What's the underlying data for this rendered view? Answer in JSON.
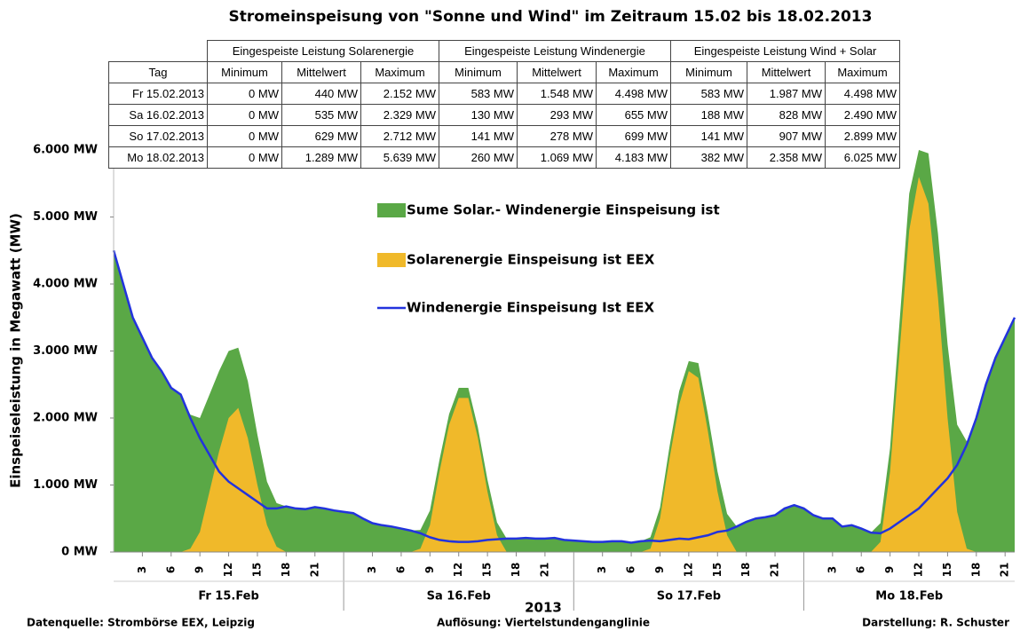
{
  "chart_data": {
    "type": "area",
    "title": "Stromeinspeisung von \"Sonne und Wind\" im Zeitraum 15.02 bis 18.02.2013",
    "ylabel": "Einspeiseleistung in Megawatt (MW)",
    "xlabel": "2013",
    "notes": [
      "Datenquelle: Strombörse EEX, Leipzig",
      "Auflösung: Viertelstundenganglinie",
      "Darstellung: R. Schuster"
    ],
    "categories": [
      "Fr 15.Feb",
      "Sa 16.Feb",
      "So 17.Feb",
      "Mo 18.Feb"
    ],
    "day_ticks": [
      24,
      48,
      72
    ],
    "xlim": [
      0,
      94
    ],
    "ylim": [
      0,
      6000
    ],
    "yticks": [
      {
        "value": 0,
        "label": "0 MW"
      },
      {
        "value": 1000,
        "label": "1.000 MW"
      },
      {
        "value": 2000,
        "label": "2.000 MW"
      },
      {
        "value": 3000,
        "label": "3.000 MW"
      },
      {
        "value": 4000,
        "label": "4.000 MW"
      },
      {
        "value": 5000,
        "label": "5.000 MW"
      },
      {
        "value": 6000,
        "label": "6.000 MW"
      }
    ],
    "xticks": [
      3,
      6,
      9,
      12,
      15,
      18,
      21,
      {
        "value": 27,
        "label": "3"
      },
      {
        "value": 30,
        "label": "6"
      },
      {
        "value": 33,
        "label": "9"
      },
      {
        "value": 36,
        "label": "12"
      },
      {
        "value": 39,
        "label": "15"
      },
      {
        "value": 42,
        "label": "18"
      },
      {
        "value": 45,
        "label": "21"
      },
      {
        "value": 51,
        "label": "3"
      },
      {
        "value": 54,
        "label": "6"
      },
      {
        "value": 57,
        "label": "9"
      },
      {
        "value": 60,
        "label": "12"
      },
      {
        "value": 63,
        "label": "15"
      },
      {
        "value": 66,
        "label": "18"
      },
      {
        "value": 69,
        "label": "21"
      },
      {
        "value": 75,
        "label": "3"
      },
      {
        "value": 78,
        "label": "6"
      },
      {
        "value": 81,
        "label": "9"
      },
      {
        "value": 84,
        "label": "12"
      },
      {
        "value": 87,
        "label": "15"
      },
      {
        "value": 90,
        "label": "18"
      },
      {
        "value": 93,
        "label": "21"
      }
    ],
    "x": [
      0,
      1,
      2,
      3,
      4,
      5,
      6,
      7,
      8,
      9,
      10,
      11,
      12,
      13,
      14,
      15,
      16,
      17,
      18,
      19,
      20,
      21,
      22,
      23,
      24,
      25,
      26,
      27,
      28,
      29,
      30,
      31,
      32,
      33,
      34,
      35,
      36,
      37,
      38,
      39,
      40,
      41,
      42,
      43,
      44,
      45,
      46,
      47,
      48,
      49,
      50,
      51,
      52,
      53,
      54,
      55,
      56,
      57,
      58,
      59,
      60,
      61,
      62,
      63,
      64,
      65,
      66,
      67,
      68,
      69,
      70,
      71,
      72,
      73,
      74,
      75,
      76,
      77,
      78,
      79,
      80,
      81,
      82,
      83,
      84,
      85,
      86,
      87,
      88,
      89,
      90,
      91,
      92,
      93,
      94
    ],
    "series": [
      {
        "name": "Sume Solar.- Windenergie Einspeisung ist",
        "kind": "area",
        "color": "#5aa846",
        "values": [
          4500,
          4000,
          3500,
          3200,
          2900,
          2700,
          2450,
          2350,
          2050,
          2000,
          2350,
          2700,
          3000,
          3050,
          2550,
          1750,
          1050,
          730,
          680,
          650,
          640,
          670,
          650,
          620,
          600,
          580,
          500,
          430,
          400,
          380,
          350,
          320,
          330,
          620,
          1380,
          2060,
          2450,
          2450,
          1860,
          1080,
          440,
          200,
          200,
          210,
          200,
          200,
          210,
          180,
          170,
          160,
          150,
          150,
          160,
          160,
          140,
          160,
          220,
          660,
          1580,
          2400,
          2850,
          2820,
          2050,
          1200,
          570,
          380,
          450,
          500,
          520,
          550,
          650,
          700,
          650,
          550,
          500,
          500,
          380,
          400,
          350,
          290,
          430,
          1550,
          3450,
          5350,
          6000,
          5950,
          4750,
          3100,
          1900,
          1650,
          2000,
          2500,
          2900,
          3200,
          3500
        ]
      },
      {
        "name": "Solarenergie Einspeisung ist EEX",
        "kind": "area",
        "color": "#f0b92a",
        "values": [
          0,
          0,
          0,
          0,
          0,
          0,
          0,
          0,
          50,
          300,
          900,
          1500,
          2000,
          2150,
          1700,
          1000,
          400,
          80,
          0,
          0,
          0,
          0,
          0,
          0,
          0,
          0,
          0,
          0,
          0,
          0,
          0,
          0,
          50,
          400,
          1200,
          1900,
          2300,
          2300,
          1700,
          900,
          250,
          0,
          0,
          0,
          0,
          0,
          0,
          0,
          0,
          0,
          0,
          0,
          0,
          0,
          0,
          0,
          50,
          500,
          1400,
          2200,
          2700,
          2600,
          1800,
          900,
          250,
          0,
          0,
          0,
          0,
          0,
          0,
          0,
          0,
          0,
          0,
          0,
          0,
          0,
          0,
          0,
          150,
          1200,
          3000,
          4800,
          5600,
          5200,
          3800,
          2000,
          600,
          50,
          0,
          0,
          0,
          0,
          0
        ]
      },
      {
        "name": "Windenergie Einspeisung Ist EEX",
        "kind": "line",
        "color": "#2233dd",
        "values": [
          4500,
          4000,
          3500,
          3200,
          2900,
          2700,
          2450,
          2350,
          2000,
          1700,
          1450,
          1200,
          1050,
          950,
          850,
          750,
          650,
          650,
          680,
          650,
          640,
          670,
          650,
          620,
          600,
          580,
          500,
          430,
          400,
          380,
          350,
          320,
          280,
          220,
          180,
          160,
          150,
          150,
          160,
          180,
          190,
          200,
          200,
          210,
          200,
          200,
          210,
          180,
          170,
          160,
          150,
          150,
          160,
          160,
          140,
          160,
          170,
          160,
          180,
          200,
          190,
          220,
          250,
          300,
          320,
          380,
          450,
          500,
          520,
          550,
          650,
          700,
          650,
          550,
          500,
          500,
          380,
          400,
          350,
          290,
          280,
          350,
          450,
          550,
          650,
          800,
          950,
          1100,
          1300,
          1600,
          2000,
          2500,
          2900,
          3200,
          3500
        ]
      }
    ]
  },
  "table": {
    "groups": [
      "Eingespeiste Leistung Solarenergie",
      "Eingespeiste Leistung Windenergie",
      "Eingespeiste Leistung Wind  + Solar"
    ],
    "columns": [
      "Tag",
      "Minimum",
      "Mittelwert",
      "Maximum",
      "Minimum",
      "Mittelwert",
      "Maximum",
      "Minimum",
      "Mittelwert",
      "Maximum"
    ],
    "rows": [
      [
        "Fr 15.02.2013",
        "0 MW",
        "440 MW",
        "2.152 MW",
        "583 MW",
        "1.548 MW",
        "4.498 MW",
        "583 MW",
        "1.987 MW",
        "4.498 MW"
      ],
      [
        "Sa 16.02.2013",
        "0 MW",
        "535 MW",
        "2.329 MW",
        "130 MW",
        "293 MW",
        "655 MW",
        "188 MW",
        "828 MW",
        "2.490 MW"
      ],
      [
        "So 17.02.2013",
        "0 MW",
        "629 MW",
        "2.712 MW",
        "141 MW",
        "278 MW",
        "699 MW",
        "141 MW",
        "907 MW",
        "2.899 MW"
      ],
      [
        "Mo 18.02.2013",
        "0 MW",
        "1.289 MW",
        "5.639 MW",
        "260 MW",
        "1.069 MW",
        "4.183 MW",
        "382 MW",
        "2.358 MW",
        "6.025 MW"
      ]
    ]
  }
}
